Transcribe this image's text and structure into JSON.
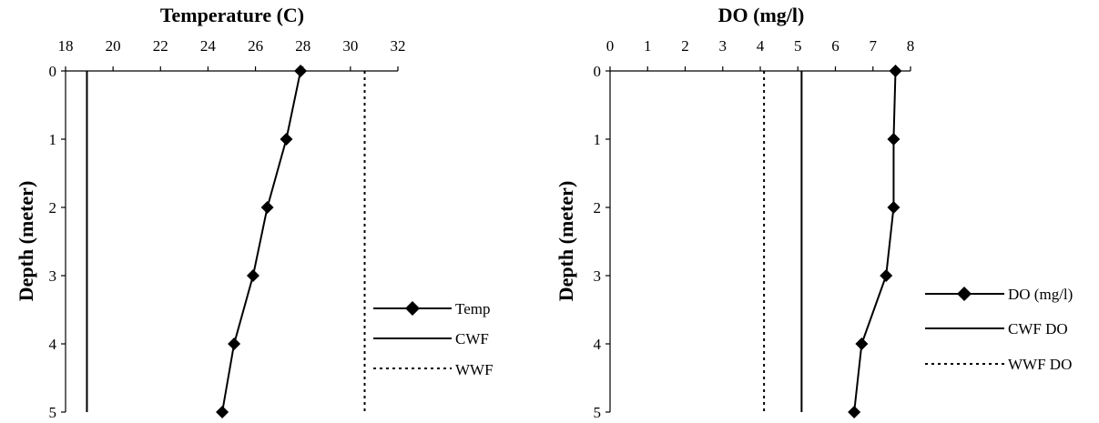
{
  "chart_data": [
    {
      "type": "line",
      "title": "Temperature (C)",
      "xlabel": "Temperature (C)",
      "ylabel": "Depth (meter)",
      "xlim": [
        18,
        32
      ],
      "ylim": [
        0,
        5
      ],
      "x_ticks": [
        18,
        20,
        22,
        24,
        26,
        28,
        30,
        32
      ],
      "y_ticks": [
        0,
        1,
        2,
        3,
        4,
        5
      ],
      "y_inverted": true,
      "x_axis_position": "top",
      "legend_position": "right",
      "series": [
        {
          "name": "Temp",
          "style": "line-diamond",
          "x": [
            27.9,
            27.3,
            26.5,
            25.9,
            25.1,
            24.6
          ],
          "y": [
            0,
            1,
            2,
            3,
            4,
            5
          ]
        },
        {
          "name": "CWF",
          "style": "solid",
          "x": [
            18.9,
            18.9
          ],
          "y": [
            0,
            5
          ]
        },
        {
          "name": "WWF",
          "style": "dotted",
          "x": [
            30.6,
            30.6
          ],
          "y": [
            0,
            5
          ]
        }
      ]
    },
    {
      "type": "line",
      "title": "DO (mg/l)",
      "xlabel": "DO (mg/l)",
      "ylabel": "Depth (meter)",
      "xlim": [
        0,
        8
      ],
      "ylim": [
        0,
        5
      ],
      "x_ticks": [
        0,
        1,
        2,
        3,
        4,
        5,
        6,
        7,
        8
      ],
      "y_ticks": [
        0,
        1,
        2,
        3,
        4,
        5
      ],
      "y_inverted": true,
      "x_axis_position": "top",
      "legend_position": "right",
      "series": [
        {
          "name": "DO (mg/l)",
          "style": "line-diamond",
          "x": [
            7.6,
            7.55,
            7.55,
            7.35,
            6.7,
            6.5
          ],
          "y": [
            0,
            1,
            2,
            3,
            4,
            5
          ]
        },
        {
          "name": "CWF DO",
          "style": "solid",
          "x": [
            5.1,
            5.1
          ],
          "y": [
            0,
            5
          ]
        },
        {
          "name": "WWF DO",
          "style": "dotted",
          "x": [
            4.1,
            4.1
          ],
          "y": [
            0,
            5
          ]
        }
      ]
    }
  ]
}
